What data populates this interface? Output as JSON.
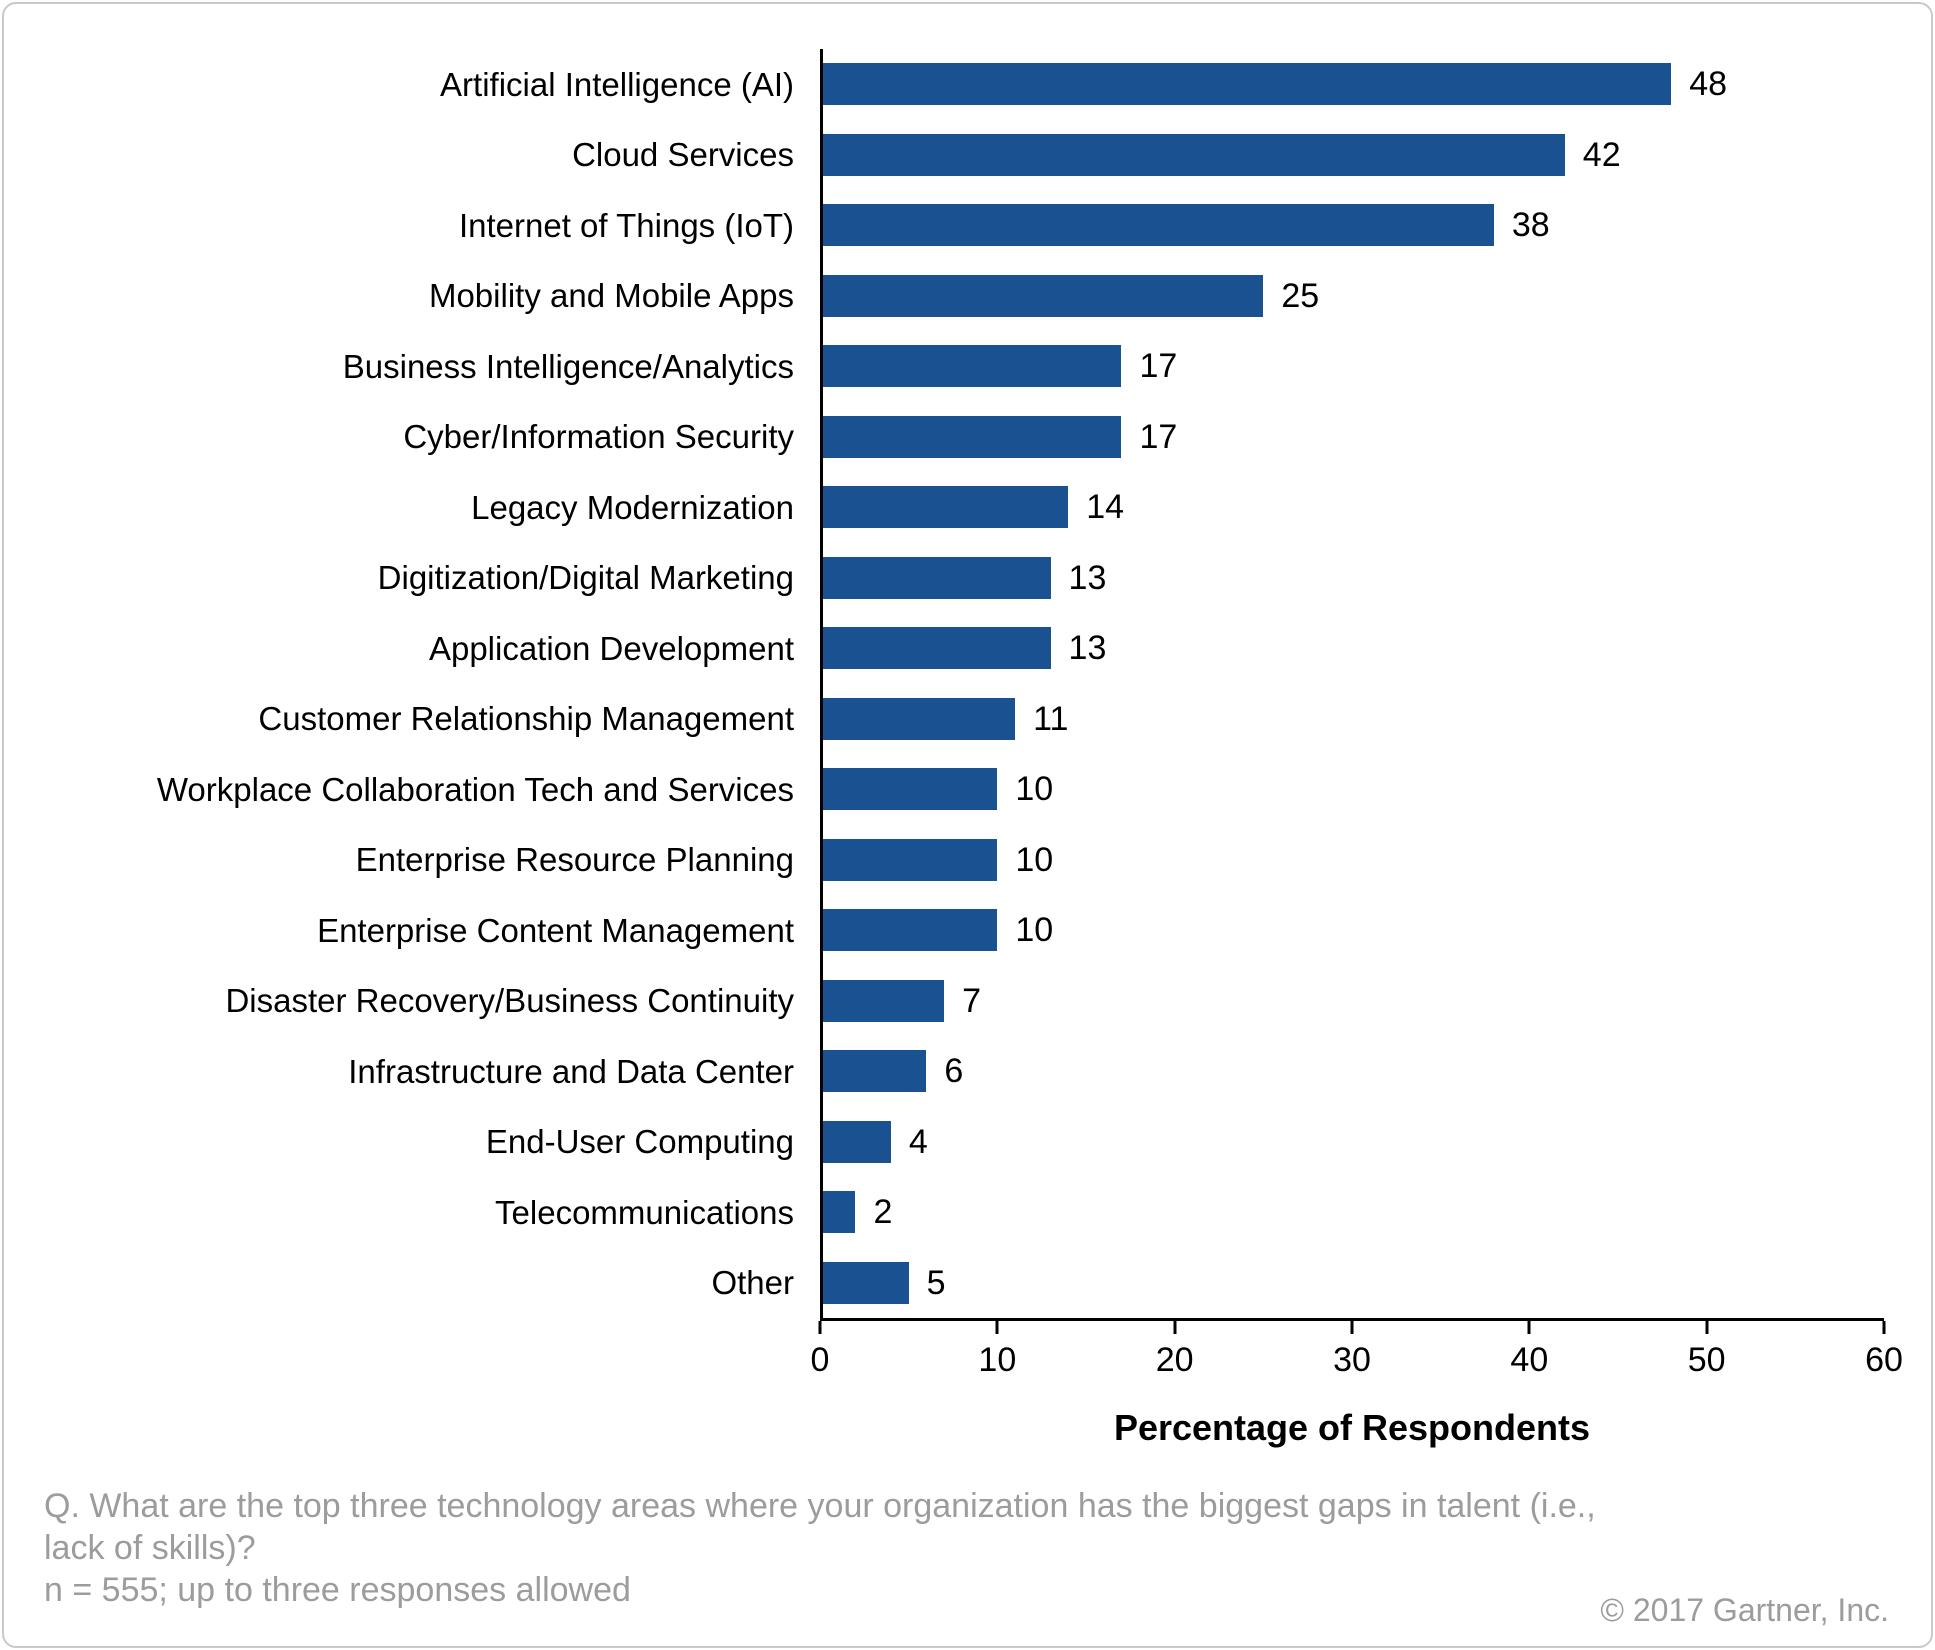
{
  "chart_data": {
    "type": "bar",
    "orientation": "horizontal",
    "title": "",
    "xlabel": "Percentage of Respondents",
    "ylabel": "",
    "xlim": [
      0,
      60
    ],
    "xticks": [
      0,
      10,
      20,
      30,
      40,
      50,
      60
    ],
    "grid": false,
    "legend": "none",
    "value_labels": true,
    "bar_color": "#1A5291",
    "categories": [
      "Artificial Intelligence (AI)",
      "Cloud Services",
      "Internet of Things (IoT)",
      "Mobility and Mobile Apps",
      "Business Intelligence/Analytics",
      "Cyber/Information Security",
      "Legacy Modernization",
      "Digitization/Digital Marketing",
      "Application Development",
      "Customer Relationship Management",
      "Workplace Collaboration Tech and Services",
      "Enterprise Resource Planning",
      "Enterprise Content Management",
      "Disaster Recovery/Business Continuity",
      "Infrastructure and Data Center",
      "End-User Computing",
      "Telecommunications",
      "Other"
    ],
    "values": [
      48,
      42,
      38,
      25,
      17,
      17,
      14,
      13,
      13,
      11,
      10,
      10,
      10,
      7,
      6,
      4,
      2,
      5
    ]
  },
  "footer": {
    "question": "Q. What are the top three technology areas where your organization has the biggest gaps in talent (i.e., lack of skills)?",
    "sample_note": "n = 555; up to three responses allowed",
    "copyright": "© 2017 Gartner, Inc."
  }
}
